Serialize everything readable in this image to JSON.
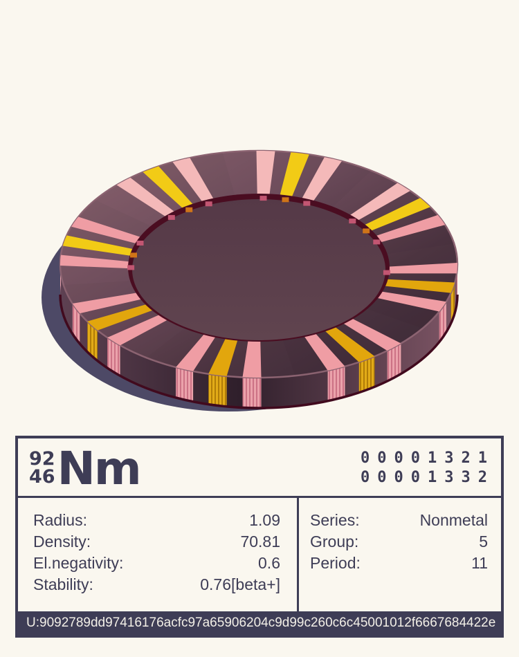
{
  "colors": {
    "background": "#faf7ef",
    "card_navy": "#3e3d56",
    "footer_text": "#f2efe7",
    "chip": {
      "shadow": "#4d4966",
      "rim_light": "#8d6571",
      "rim_mid1": "#6f4e5d",
      "rim_mid2": "#4e3542",
      "rim_dark": "#3a2834",
      "side_left": "#5e4152",
      "side_dark": "#2f1f2b",
      "side_light": "#7e5666",
      "floor_top": "#553947",
      "floor_bottom": "#60444f",
      "step_ring": "#4a0d21",
      "outline_dark": "#410a1e",
      "bevel_light": "#8d6472",
      "stripe_pink": "#ef9da4",
      "stripe_pink_light": "#f4b9b9",
      "stripe_yellow": "#f2cb16",
      "stripe_gold": "#e2a60d",
      "side_pink": "#eba2ab",
      "side_pink_rib": "#cc7285",
      "side_gold": "#e2ab18",
      "side_gold_rib": "#b07c08",
      "mark_pink": "#c25672",
      "mark_orange": "#cf7418"
    }
  },
  "chip": {
    "name": "striped isometric disc",
    "group_angles": [
      -78,
      -33,
      12,
      57,
      102,
      147,
      192,
      237
    ],
    "stripe_offsets": [
      -10,
      0,
      10
    ],
    "stripe_pattern": [
      "pink",
      "yellow",
      "pink"
    ],
    "stripe_half_width_deg": 2.7
  },
  "card": {
    "mass_number": "92",
    "atomic_number": "46",
    "symbol": "Nm",
    "codes": [
      "00001321",
      "00001332"
    ],
    "properties_left": [
      {
        "label": "Radius:",
        "value": "1.09"
      },
      {
        "label": "Density:",
        "value": "70.81"
      },
      {
        "label": "El.negativity:",
        "value": "0.6"
      },
      {
        "label": "Stability:",
        "value": "0.76[beta+]"
      }
    ],
    "properties_right": [
      {
        "label": "Series:",
        "value": "Nonmetal"
      },
      {
        "label": "Group:",
        "value": "5"
      },
      {
        "label": "Period:",
        "value": "11"
      }
    ],
    "footer_hash": "U:9092789dd97416176acfc97a65906204c9d99c260c6c45001012f6667684422e"
  }
}
